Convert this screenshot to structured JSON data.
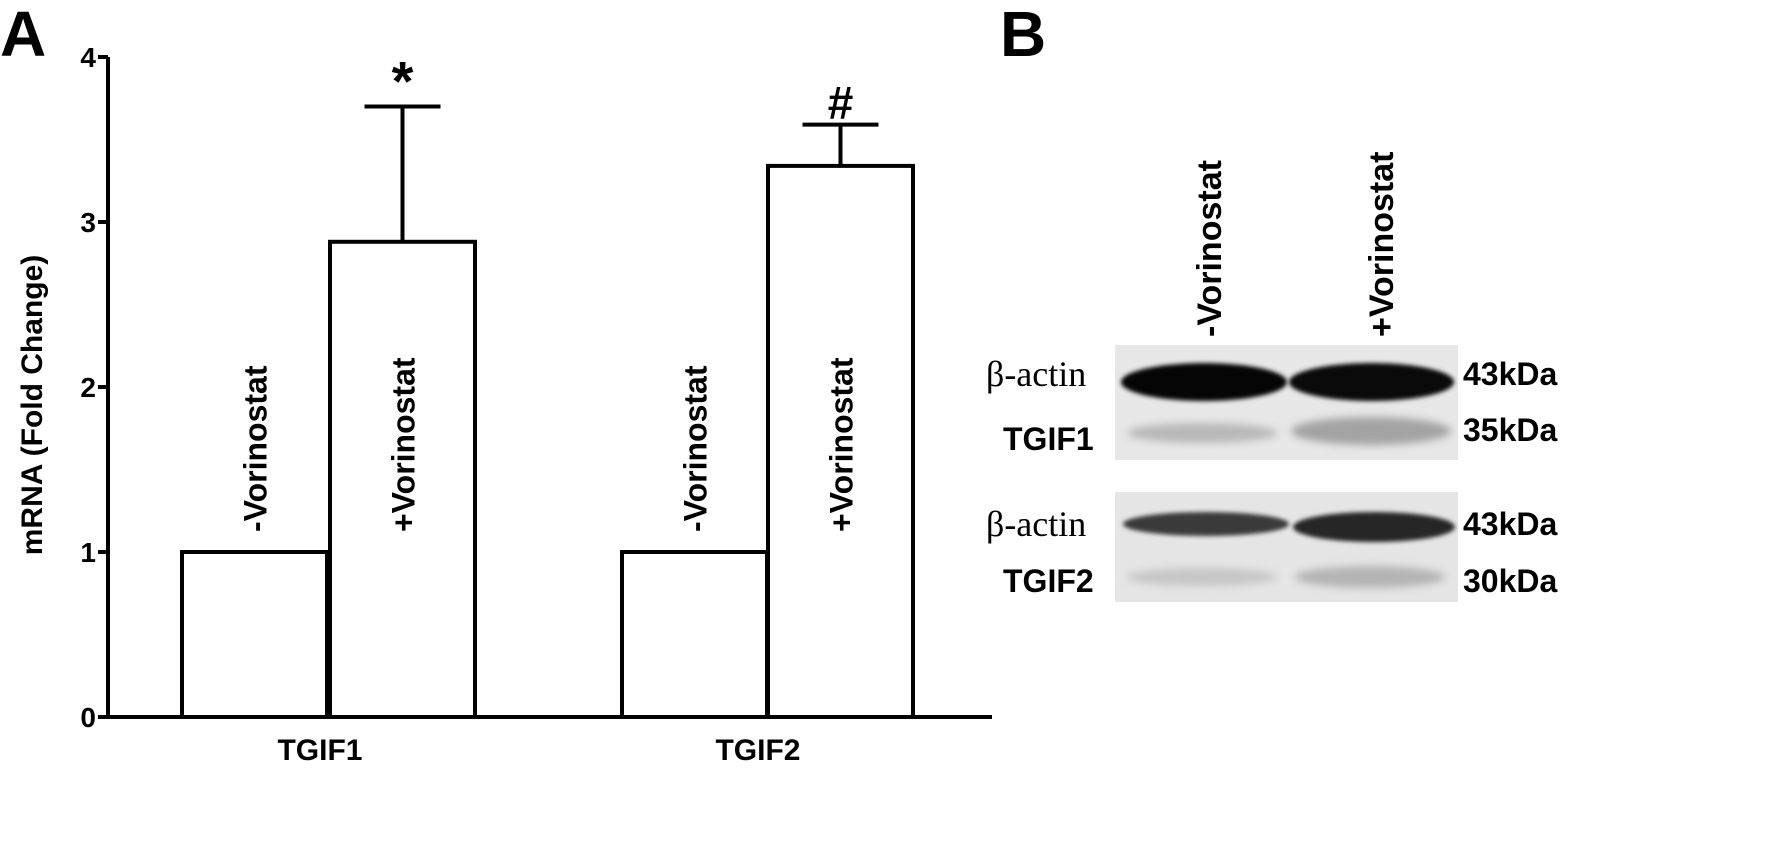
{
  "panels": {
    "a_label": "A",
    "b_label": "B"
  },
  "chart_data": {
    "type": "bar",
    "ylabel": "mRNA (Fold Change)",
    "ylim": [
      0,
      4
    ],
    "yticks": [
      "0",
      "1",
      "2",
      "3",
      "4"
    ],
    "groups": [
      "TGIF1",
      "TGIF2"
    ],
    "bars": [
      {
        "group": "TGIF1",
        "label": "-Vorinostat",
        "value": 1.0,
        "error": 0,
        "mark": ""
      },
      {
        "group": "TGIF1",
        "label": "+Vorinostat",
        "value": 2.88,
        "error": 0.82,
        "mark": "*"
      },
      {
        "group": "TGIF2",
        "label": "-Vorinostat",
        "value": 1.0,
        "error": 0,
        "mark": ""
      },
      {
        "group": "TGIF2",
        "label": "+Vorinostat",
        "value": 3.34,
        "error": 0.25,
        "mark": "#"
      }
    ]
  },
  "blot": {
    "lanes": [
      "-Vorinostat",
      "+Vorinostat"
    ],
    "rows": [
      {
        "label": "β-actin",
        "size": "43kDa"
      },
      {
        "label": "TGIF1",
        "size": "35kDa"
      },
      {
        "label": "β-actin",
        "size": "43kDa"
      },
      {
        "label": "TGIF2",
        "size": "30kDa"
      }
    ]
  }
}
